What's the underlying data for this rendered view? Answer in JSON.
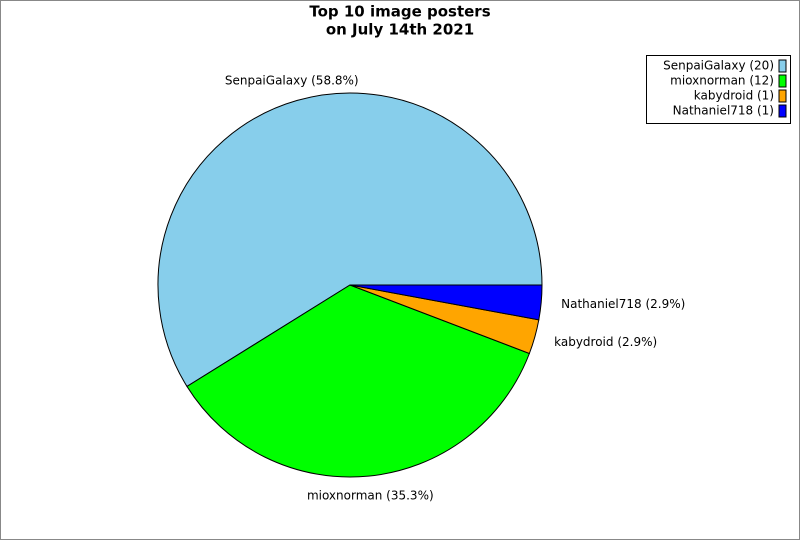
{
  "chart_data": {
    "type": "pie",
    "title": [
      "Top 10 image posters",
      "on July 14th 2021"
    ],
    "values": [
      58.8,
      35.3,
      2.9,
      2.9
    ],
    "value_labels": [
      "SenpaiGalaxy (58.8%)",
      "mioxnorman (35.3%)",
      "kabydroid (2.9%)",
      "Nathaniel718 (2.9%)"
    ],
    "legend_labels": [
      "SenpaiGalaxy (20)",
      "mioxnorman (12)",
      "kabydroid (1)",
      "Nathaniel718 (1)"
    ],
    "colors": [
      "#87ceeb",
      "#00ff00",
      "#ffa500",
      "#0000ff"
    ],
    "legend": "top-right"
  }
}
